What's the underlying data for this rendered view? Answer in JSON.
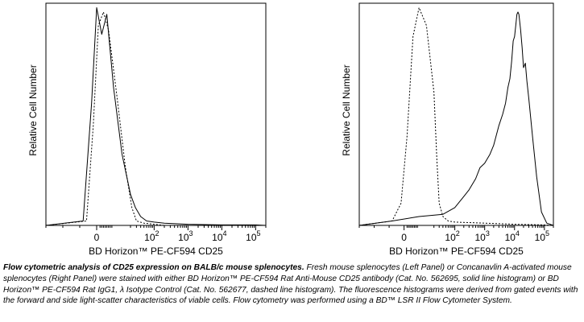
{
  "chart_data": [
    {
      "type": "line",
      "panel": "left",
      "xlabel": "BD Horizon™ PE-CF594 CD25",
      "ylabel": "Relative Cell Number",
      "x_scale": "biexponential",
      "xlim": [
        -30,
        200000
      ],
      "x_tick_labels": [
        "0",
        "10",
        "10",
        "10",
        "10"
      ],
      "x_tick_exponents": [
        "",
        "2",
        "3",
        "4",
        "5"
      ],
      "x_tick_values": [
        0,
        100,
        1000,
        10000,
        100000
      ],
      "ylim": [
        0,
        100
      ],
      "series": [
        {
          "line_style": "solid",
          "x": [
            -30,
            -8,
            -3,
            0,
            3,
            6,
            10,
            15,
            20,
            28,
            40,
            60,
            100,
            200,
            1000,
            10000,
            100000,
            200000
          ],
          "y": [
            0,
            2,
            55,
            98,
            86,
            95,
            62,
            32,
            14,
            8,
            4,
            2,
            1.5,
            1,
            0.5,
            0.2,
            0.2,
            0
          ]
        },
        {
          "line_style": "dashed",
          "x": [
            -30,
            -6,
            -2,
            1,
            4,
            7,
            12,
            17,
            22,
            30,
            50,
            100,
            200
          ],
          "y": [
            0,
            2,
            45,
            90,
            96,
            88,
            58,
            26,
            8,
            2,
            1,
            0.5,
            0
          ]
        }
      ]
    },
    {
      "type": "line",
      "panel": "right",
      "xlabel": "BD Horizon™ PE-CF594 CD25",
      "ylabel": "Relative Cell Number",
      "x_scale": "biexponential",
      "xlim": [
        -30,
        200000
      ],
      "x_tick_labels": [
        "0",
        "10",
        "10",
        "10",
        "10"
      ],
      "x_tick_exponents": [
        "",
        "2",
        "3",
        "4",
        "5"
      ],
      "x_tick_values": [
        0,
        100,
        1000,
        10000,
        100000
      ],
      "ylim": [
        0,
        100
      ],
      "series": [
        {
          "line_style": "solid",
          "x": [
            -30,
            -8,
            10,
            40,
            100,
            200,
            300,
            500,
            700,
            1000,
            1500,
            2000,
            3000,
            4000,
            5000,
            6000,
            7000,
            8000,
            9000,
            10000,
            11000,
            12000,
            13000,
            14000,
            16000,
            18000,
            20000,
            23000,
            26000,
            30000,
            40000,
            55000,
            80000,
            120000,
            200000
          ],
          "y": [
            0,
            2,
            4,
            5,
            8,
            13,
            16,
            21,
            26,
            28,
            32,
            36,
            45,
            50,
            55,
            62,
            66,
            74,
            83,
            85,
            90,
            95,
            96,
            95,
            88,
            80,
            71,
            73,
            65,
            57,
            40,
            22,
            6,
            1,
            0
          ]
        },
        {
          "line_style": "dashed",
          "x": [
            -30,
            -8,
            -2,
            2,
            6,
            10,
            15,
            20,
            25,
            30,
            40,
            60,
            100,
            1000,
            10000,
            100000,
            200000
          ],
          "y": [
            0,
            2,
            10,
            40,
            85,
            98,
            90,
            60,
            30,
            10,
            4,
            2,
            1.5,
            1,
            0.5,
            0.2,
            0
          ]
        }
      ]
    }
  ],
  "caption": {
    "bold": "Flow cytometric analysis of CD25 expression on BALB/c mouse splenocytes.",
    "body": " Fresh mouse splenocytes (Left Panel) or Concanavlin A-activated mouse splenocytes (Right Panel) were stained with either BD Horizon™ PE-CF594 Rat Anti-Mouse CD25 antibody (Cat. No. 562695, solid line histogram) or BD Horizon™ PE-CF594 Rat IgG1, λ Isotype Control (Cat. No. 562677, dashed line histogram). The fluorescence histograms were derived from gated events with the forward and side light-scatter characteristics of viable cells. Flow cytometry was performed using a BD™ LSR II Flow Cytometer System."
  }
}
